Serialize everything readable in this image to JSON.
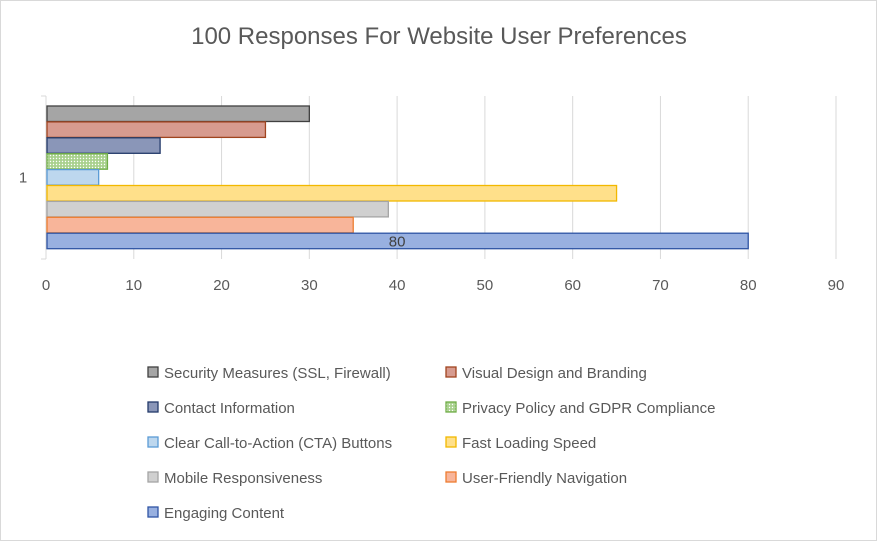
{
  "chart_data": {
    "type": "bar",
    "orientation": "horizontal",
    "title": "100 Responses For Website User Preferences",
    "categories": [
      "1"
    ],
    "xlim": [
      0,
      90
    ],
    "xticks": [
      0,
      10,
      20,
      30,
      40,
      50,
      60,
      70,
      80,
      90
    ],
    "grid": true,
    "legend_position": "bottom",
    "series": [
      {
        "name": "Security Measures (SSL, Firewall)",
        "values": [
          30
        ],
        "fill": "#a5a5a5",
        "stroke": "#404040"
      },
      {
        "name": "Visual Design and Branding",
        "values": [
          25
        ],
        "fill": "#d79b8f",
        "stroke": "#a0441f"
      },
      {
        "name": "Contact Information",
        "values": [
          13
        ],
        "fill": "#8a96b8",
        "stroke": "#233a6a"
      },
      {
        "name": "Privacy Policy and GDPR Compliance",
        "values": [
          7
        ],
        "fill": "#a9d18e",
        "stroke": "#70ad47",
        "pattern": "dots"
      },
      {
        "name": "Clear Call-to-Action (CTA) Buttons",
        "values": [
          6
        ],
        "fill": "#bdd7ee",
        "stroke": "#5b9bd5"
      },
      {
        "name": "Fast Loading Speed",
        "values": [
          65
        ],
        "fill": "#ffe08a",
        "stroke": "#f2b800"
      },
      {
        "name": "Mobile Responsiveness",
        "values": [
          39
        ],
        "fill": "#d0d0d0",
        "stroke": "#a5a5a5"
      },
      {
        "name": "User-Friendly Navigation",
        "values": [
          35
        ],
        "fill": "#f8b59a",
        "stroke": "#ed7d31"
      },
      {
        "name": "Engaging Content",
        "values": [
          80
        ],
        "fill": "#98b0e0",
        "stroke": "#2f55a4",
        "data_label": "80"
      }
    ]
  }
}
